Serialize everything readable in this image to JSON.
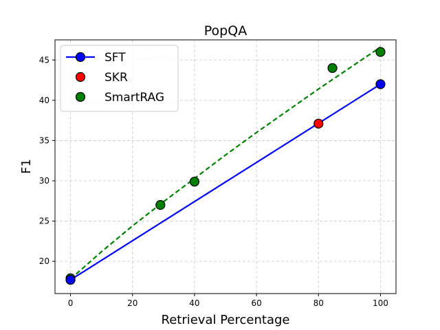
{
  "chart_data": {
    "type": "line",
    "title": "PopQA",
    "xlabel": "Retrieval Percentage",
    "ylabel": "F1",
    "xlim": [
      -5,
      105
    ],
    "ylim": [
      16.0,
      47.5
    ],
    "xticks": [
      0,
      20,
      40,
      60,
      80,
      100
    ],
    "yticks": [
      20,
      25,
      30,
      35,
      40,
      45
    ],
    "grid": true,
    "legend_position": "top-left",
    "series": [
      {
        "name": "SFT",
        "style": "solid-line-with-markers",
        "color": "#0000ff",
        "marker_color": "#0000ff",
        "x": [
          0,
          100
        ],
        "y": [
          17.7,
          42.0
        ]
      },
      {
        "name": "SKR",
        "style": "scatter",
        "marker_color": "#ff0000",
        "x": [
          80
        ],
        "y": [
          37.1
        ]
      },
      {
        "name": "SmartRAG",
        "style": "scatter-with-dashed-trend",
        "color": "#008000",
        "marker_color": "#008000",
        "x": [
          0,
          29,
          40,
          84.5,
          100
        ],
        "y": [
          17.9,
          27.0,
          29.9,
          44.0,
          46.0
        ],
        "trend_x": [
          0,
          10,
          20,
          30,
          40,
          50,
          60,
          70,
          80,
          90,
          100
        ],
        "trend_y": [
          17.8,
          21.2,
          24.4,
          27.4,
          30.3,
          33.2,
          36.0,
          38.7,
          41.4,
          44.0,
          46.6
        ]
      }
    ]
  }
}
